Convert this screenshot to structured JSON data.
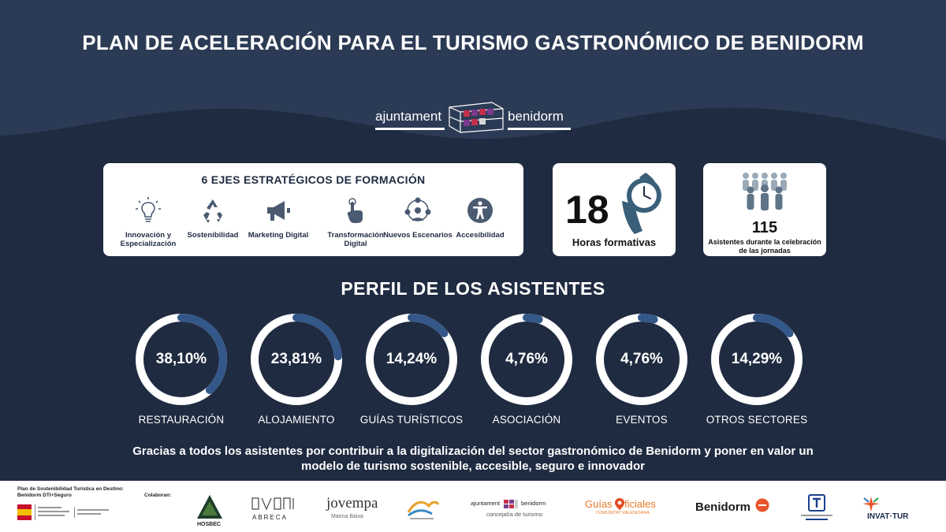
{
  "title": "PLAN DE ACELERACIÓN PARA EL TURISMO GASTRONÓMICO DE BENIDORM",
  "main_logo": {
    "left_word": "ajuntament",
    "right_word": "benidorm"
  },
  "ejes": {
    "title": "6 EJES ESTRATÉGICOS DE FORMACIÓN",
    "items": [
      {
        "label": "Innovación y Especialización",
        "icon": "lightbulb-icon"
      },
      {
        "label": "Sostenibilidad",
        "icon": "recycle-icon"
      },
      {
        "label": "Marketing Digital",
        "icon": "megaphone-icon"
      },
      {
        "label": "Transformación Digital",
        "icon": "touch-hand-icon"
      },
      {
        "label": "Nuevos Escenarios",
        "icon": "network-people-icon"
      },
      {
        "label": "Accesibilidad",
        "icon": "accessibility-icon"
      }
    ]
  },
  "horas": {
    "value": "18",
    "label": "Horas formativas",
    "icon": "wristwatch-icon"
  },
  "asistentes": {
    "value": "115",
    "label": "Asistentes durante la celebración de las jornadas",
    "icon": "people-group-icon"
  },
  "perfil": {
    "title": "PERFIL DE LOS ASISTENTES",
    "items": [
      {
        "value_text": "38,10%",
        "value": 38.1,
        "label": "RESTAURACIÓN"
      },
      {
        "value_text": "23,81%",
        "value": 23.81,
        "label": "ALOJAMIENTO"
      },
      {
        "value_text": "14,24%",
        "value": 14.24,
        "label": "GUÍAS TURÍSTICOS"
      },
      {
        "value_text": "4,76%",
        "value": 4.76,
        "label": "ASOCIACIÓN"
      },
      {
        "value_text": "4,76%",
        "value": 4.76,
        "label": "EVENTOS"
      },
      {
        "value_text": "14,29%",
        "value": 14.29,
        "label": "OTROS SECTORES"
      }
    ]
  },
  "gracias": "Gracias a todos los asistentes por contribuir a la digitalización del sector gastronómico de Benidorm y poner en valor un modelo de turismo sostenible, accesible, seguro e innovador",
  "footer": {
    "plan_line1": "Plan de Sostenibilidad Turística en Destino:",
    "plan_line2": "Benidorm DTI+Seguro",
    "colaboran": "Colaboran:",
    "logos": {
      "hosbec": "HOSBEC",
      "abreca": "ABRECA",
      "jovempa": "jovempa",
      "jovempa_sub": "Marina Baixa",
      "concejalia_left": "ajuntament",
      "concejalia_right": "benidorm",
      "concejalia_sub": "concejalía de turismo",
      "guias_a": "Guías",
      "guias_b": "ficiales",
      "guias_sub": "COMUNITAT VALENCIANA",
      "benidorm": "Benidorm",
      "invat": "INVAT·TUR"
    }
  },
  "colors": {
    "background": "#1f2b40",
    "donut_track": "#ffffff",
    "donut_arc": "#34578a",
    "watch": "#3a5f7a",
    "people": "#7f93a4"
  }
}
